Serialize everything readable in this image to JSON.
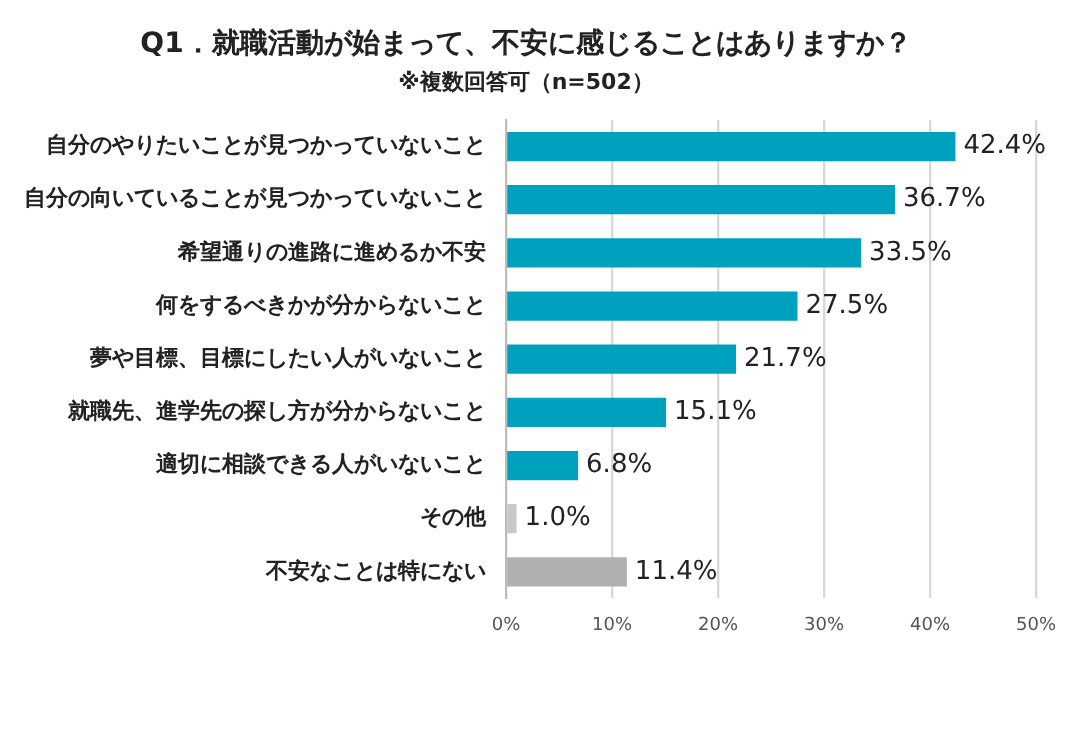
{
  "chart_data": {
    "type": "bar",
    "orientation": "horizontal",
    "title": "Q1．就職活動が始まって、不安に感じることはありますか？",
    "subtitle": "※複数回答可（n=502）",
    "categories": [
      "自分のやりたいことが見つかっていないこと",
      "自分の向いていることが見つかっていないこと",
      "希望通りの進路に進めるか不安",
      "何をするべきかが分からないこと",
      "夢や目標、目標にしたい人がいないこと",
      "就職先、進学先の探し方が分からないこと",
      "適切に相談できる人がいないこと",
      "その他",
      "不安なことは特にない"
    ],
    "values": [
      42.4,
      36.7,
      33.5,
      27.5,
      21.7,
      15.1,
      6.8,
      1.0,
      11.4
    ],
    "colors": [
      "#00a0bf",
      "#00a0bf",
      "#00a0bf",
      "#00a0bf",
      "#00a0bf",
      "#00a0bf",
      "#00a0bf",
      "#c8c8c8",
      "#b0b0b0"
    ],
    "value_labels": [
      "42.4%",
      "36.7%",
      "33.5%",
      "27.5%",
      "21.7%",
      "15.1%",
      "6.8%",
      "1.0%",
      "11.4%"
    ],
    "xlim": [
      0,
      50
    ],
    "xticks": [
      {
        "value": 0,
        "label": "0%"
      },
      {
        "value": 10,
        "label": "10%"
      },
      {
        "value": 20,
        "label": "20%"
      },
      {
        "value": 30,
        "label": "30%"
      },
      {
        "value": 40,
        "label": "40%"
      },
      {
        "value": 50,
        "label": "50%"
      }
    ],
    "grid": "x",
    "legend": false
  }
}
